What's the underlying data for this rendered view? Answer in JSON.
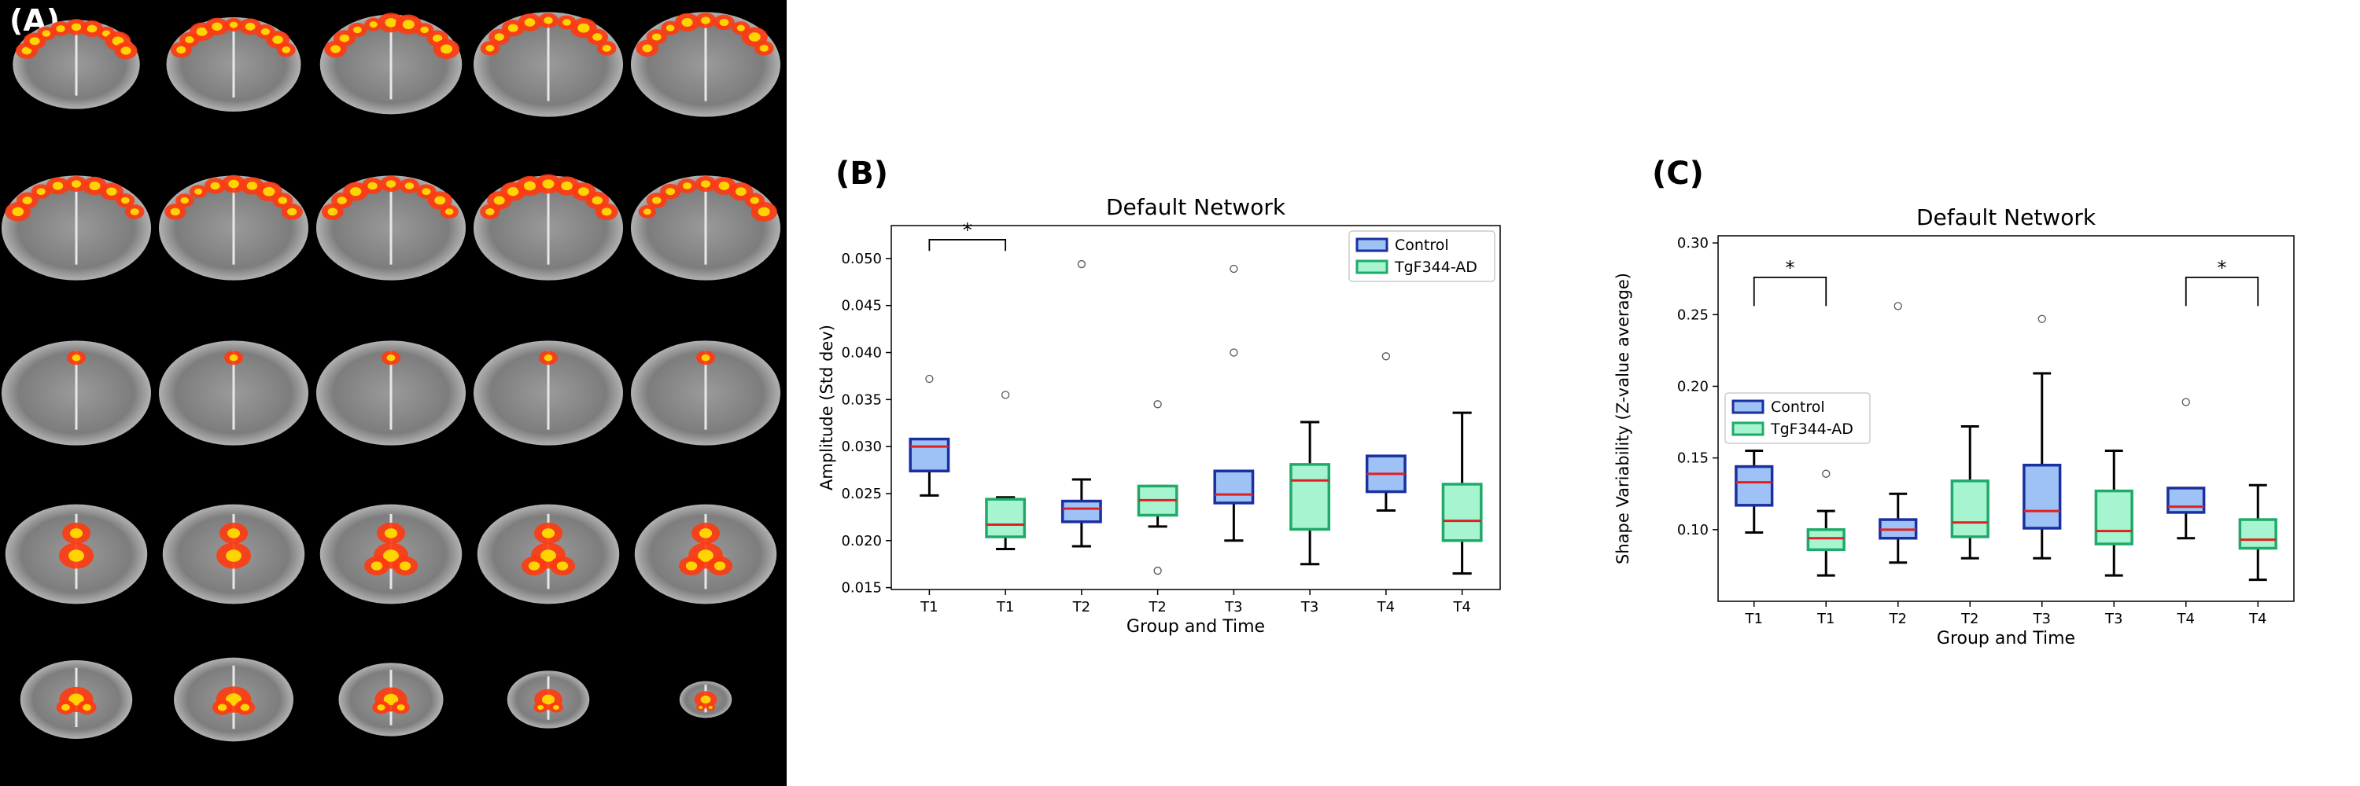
{
  "panel_a": {
    "label": "(A)",
    "rows": 5,
    "cols": 5,
    "description_name": "coronal-brain-slices-with-default-network-activation"
  },
  "colors": {
    "control_fill": "#9ec2f5",
    "control_edge": "#1a2fa0",
    "tg_fill": "#a6f5d0",
    "tg_edge": "#1faa6a",
    "median": "#e02020",
    "whisker": "#000000"
  },
  "chart_data": [
    {
      "panel_label": "(B)",
      "type": "box",
      "title": "Default Network",
      "xlabel": "Group and Time",
      "ylabel": "Amplitude (Std dev)",
      "ylim": [
        0.0148,
        0.0535
      ],
      "yticks": [
        0.015,
        0.02,
        0.025,
        0.03,
        0.035,
        0.04,
        0.045,
        0.05
      ],
      "ytick_labels": [
        "0.015",
        "0.020",
        "0.025",
        "0.030",
        "0.035",
        "0.040",
        "0.045",
        "0.050"
      ],
      "legend": {
        "position": "top-right",
        "entries": [
          "Control",
          "TgF344-AD"
        ]
      },
      "categories": [
        "T1",
        "T1",
        "T2",
        "T2",
        "T3",
        "T3",
        "T4",
        "T4"
      ],
      "boxes": [
        {
          "group": "Control",
          "whislo": 0.0248,
          "q1": 0.0274,
          "med": 0.03,
          "q3": 0.0308,
          "whishi": 0.0308,
          "fliers": [
            0.0372
          ]
        },
        {
          "group": "TgF344-AD",
          "whislo": 0.0191,
          "q1": 0.0204,
          "med": 0.0217,
          "q3": 0.0244,
          "whishi": 0.0246,
          "fliers": [
            0.0355
          ]
        },
        {
          "group": "Control",
          "whislo": 0.0194,
          "q1": 0.022,
          "med": 0.0234,
          "q3": 0.0242,
          "whishi": 0.0265,
          "fliers": [
            0.0494
          ]
        },
        {
          "group": "TgF344-AD",
          "whislo": 0.0215,
          "q1": 0.0227,
          "med": 0.0243,
          "q3": 0.0258,
          "whishi": 0.0258,
          "fliers": [
            0.0345,
            0.0168
          ]
        },
        {
          "group": "Control",
          "whislo": 0.02,
          "q1": 0.024,
          "med": 0.0249,
          "q3": 0.0274,
          "whishi": 0.0274,
          "fliers": [
            0.0489,
            0.04
          ]
        },
        {
          "group": "TgF344-AD",
          "whislo": 0.0175,
          "q1": 0.0212,
          "med": 0.0264,
          "q3": 0.0281,
          "whishi": 0.0326,
          "fliers": []
        },
        {
          "group": "Control",
          "whislo": 0.0232,
          "q1": 0.0252,
          "med": 0.0271,
          "q3": 0.029,
          "whishi": 0.029,
          "fliers": [
            0.0396
          ]
        },
        {
          "group": "TgF344-AD",
          "whislo": 0.0165,
          "q1": 0.02,
          "med": 0.0221,
          "q3": 0.026,
          "whishi": 0.0336,
          "fliers": []
        }
      ],
      "annotations": [
        {
          "text": "*",
          "from": 0,
          "to": 1,
          "y": 0.052,
          "drop": 0.0012
        }
      ]
    },
    {
      "panel_label": "(C)",
      "type": "box",
      "title": "Default Network",
      "xlabel": "Group and Time",
      "ylabel": "Shape Variability (Z-value average)",
      "ylim": [
        0.05,
        0.305
      ],
      "yticks": [
        0.1,
        0.15,
        0.2,
        0.25,
        0.3
      ],
      "ytick_labels": [
        "0.10",
        "0.15",
        "0.20",
        "0.25",
        "0.30"
      ],
      "legend": {
        "position": "center-left",
        "entries": [
          "Control",
          "TgF344-AD"
        ]
      },
      "categories": [
        "T1",
        "T1",
        "T2",
        "T2",
        "T3",
        "T3",
        "T4",
        "T4"
      ],
      "boxes": [
        {
          "group": "Control",
          "whislo": 0.098,
          "q1": 0.117,
          "med": 0.133,
          "q3": 0.144,
          "whishi": 0.155,
          "fliers": []
        },
        {
          "group": "TgF344-AD",
          "whislo": 0.068,
          "q1": 0.086,
          "med": 0.094,
          "q3": 0.1,
          "whishi": 0.113,
          "fliers": [
            0.139
          ]
        },
        {
          "group": "Control",
          "whislo": 0.077,
          "q1": 0.094,
          "med": 0.1,
          "q3": 0.107,
          "whishi": 0.125,
          "fliers": [
            0.256
          ]
        },
        {
          "group": "TgF344-AD",
          "whislo": 0.08,
          "q1": 0.095,
          "med": 0.105,
          "q3": 0.134,
          "whishi": 0.172,
          "fliers": []
        },
        {
          "group": "Control",
          "whislo": 0.08,
          "q1": 0.101,
          "med": 0.113,
          "q3": 0.145,
          "whishi": 0.209,
          "fliers": [
            0.247
          ]
        },
        {
          "group": "TgF344-AD",
          "whislo": 0.068,
          "q1": 0.09,
          "med": 0.099,
          "q3": 0.127,
          "whishi": 0.155,
          "fliers": []
        },
        {
          "group": "Control",
          "whislo": 0.094,
          "q1": 0.112,
          "med": 0.116,
          "q3": 0.129,
          "whishi": 0.129,
          "fliers": [
            0.189
          ]
        },
        {
          "group": "TgF344-AD",
          "whislo": 0.065,
          "q1": 0.087,
          "med": 0.093,
          "q3": 0.107,
          "whishi": 0.131,
          "fliers": []
        }
      ],
      "annotations": [
        {
          "text": "*",
          "from": 0,
          "to": 1,
          "y": 0.276,
          "drop": 0.02
        },
        {
          "text": "*",
          "from": 6,
          "to": 7,
          "y": 0.276,
          "drop": 0.02
        }
      ]
    }
  ]
}
